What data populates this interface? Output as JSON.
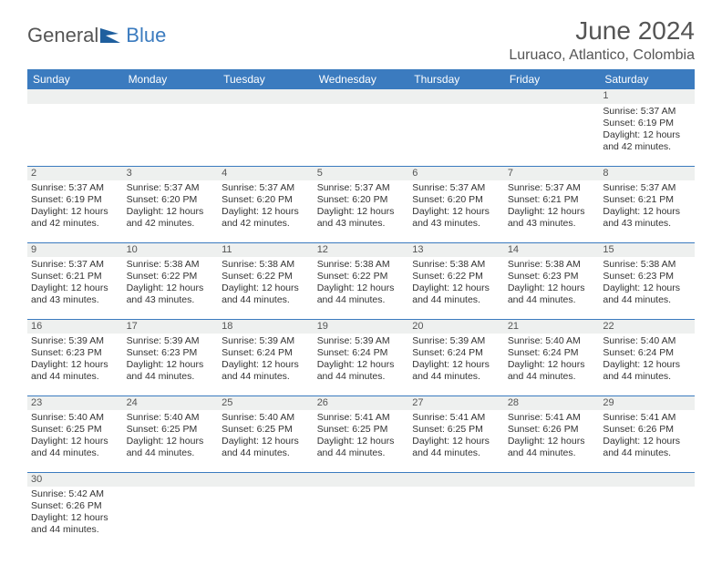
{
  "logo": {
    "part1": "General",
    "part2": "Blue"
  },
  "title": "June 2024",
  "location": "Luruaco, Atlantico, Colombia",
  "colors": {
    "header_bg": "#3b7bbf",
    "header_text": "#ffffff",
    "daynum_bg": "#eef0ef",
    "rule": "#3b7bbf",
    "body_text": "#333333",
    "title_text": "#555555"
  },
  "columns": [
    "Sunday",
    "Monday",
    "Tuesday",
    "Wednesday",
    "Thursday",
    "Friday",
    "Saturday"
  ],
  "weeks": [
    {
      "nums": [
        "",
        "",
        "",
        "",
        "",
        "",
        "1"
      ],
      "cells": [
        null,
        null,
        null,
        null,
        null,
        null,
        {
          "sunrise": "5:37 AM",
          "sunset": "6:19 PM",
          "daylight": "12 hours and 42 minutes."
        }
      ]
    },
    {
      "nums": [
        "2",
        "3",
        "4",
        "5",
        "6",
        "7",
        "8"
      ],
      "cells": [
        {
          "sunrise": "5:37 AM",
          "sunset": "6:19 PM",
          "daylight": "12 hours and 42 minutes."
        },
        {
          "sunrise": "5:37 AM",
          "sunset": "6:20 PM",
          "daylight": "12 hours and 42 minutes."
        },
        {
          "sunrise": "5:37 AM",
          "sunset": "6:20 PM",
          "daylight": "12 hours and 42 minutes."
        },
        {
          "sunrise": "5:37 AM",
          "sunset": "6:20 PM",
          "daylight": "12 hours and 43 minutes."
        },
        {
          "sunrise": "5:37 AM",
          "sunset": "6:20 PM",
          "daylight": "12 hours and 43 minutes."
        },
        {
          "sunrise": "5:37 AM",
          "sunset": "6:21 PM",
          "daylight": "12 hours and 43 minutes."
        },
        {
          "sunrise": "5:37 AM",
          "sunset": "6:21 PM",
          "daylight": "12 hours and 43 minutes."
        }
      ]
    },
    {
      "nums": [
        "9",
        "10",
        "11",
        "12",
        "13",
        "14",
        "15"
      ],
      "cells": [
        {
          "sunrise": "5:37 AM",
          "sunset": "6:21 PM",
          "daylight": "12 hours and 43 minutes."
        },
        {
          "sunrise": "5:38 AM",
          "sunset": "6:22 PM",
          "daylight": "12 hours and 43 minutes."
        },
        {
          "sunrise": "5:38 AM",
          "sunset": "6:22 PM",
          "daylight": "12 hours and 44 minutes."
        },
        {
          "sunrise": "5:38 AM",
          "sunset": "6:22 PM",
          "daylight": "12 hours and 44 minutes."
        },
        {
          "sunrise": "5:38 AM",
          "sunset": "6:22 PM",
          "daylight": "12 hours and 44 minutes."
        },
        {
          "sunrise": "5:38 AM",
          "sunset": "6:23 PM",
          "daylight": "12 hours and 44 minutes."
        },
        {
          "sunrise": "5:38 AM",
          "sunset": "6:23 PM",
          "daylight": "12 hours and 44 minutes."
        }
      ]
    },
    {
      "nums": [
        "16",
        "17",
        "18",
        "19",
        "20",
        "21",
        "22"
      ],
      "cells": [
        {
          "sunrise": "5:39 AM",
          "sunset": "6:23 PM",
          "daylight": "12 hours and 44 minutes."
        },
        {
          "sunrise": "5:39 AM",
          "sunset": "6:23 PM",
          "daylight": "12 hours and 44 minutes."
        },
        {
          "sunrise": "5:39 AM",
          "sunset": "6:24 PM",
          "daylight": "12 hours and 44 minutes."
        },
        {
          "sunrise": "5:39 AM",
          "sunset": "6:24 PM",
          "daylight": "12 hours and 44 minutes."
        },
        {
          "sunrise": "5:39 AM",
          "sunset": "6:24 PM",
          "daylight": "12 hours and 44 minutes."
        },
        {
          "sunrise": "5:40 AM",
          "sunset": "6:24 PM",
          "daylight": "12 hours and 44 minutes."
        },
        {
          "sunrise": "5:40 AM",
          "sunset": "6:24 PM",
          "daylight": "12 hours and 44 minutes."
        }
      ]
    },
    {
      "nums": [
        "23",
        "24",
        "25",
        "26",
        "27",
        "28",
        "29"
      ],
      "cells": [
        {
          "sunrise": "5:40 AM",
          "sunset": "6:25 PM",
          "daylight": "12 hours and 44 minutes."
        },
        {
          "sunrise": "5:40 AM",
          "sunset": "6:25 PM",
          "daylight": "12 hours and 44 minutes."
        },
        {
          "sunrise": "5:40 AM",
          "sunset": "6:25 PM",
          "daylight": "12 hours and 44 minutes."
        },
        {
          "sunrise": "5:41 AM",
          "sunset": "6:25 PM",
          "daylight": "12 hours and 44 minutes."
        },
        {
          "sunrise": "5:41 AM",
          "sunset": "6:25 PM",
          "daylight": "12 hours and 44 minutes."
        },
        {
          "sunrise": "5:41 AM",
          "sunset": "6:26 PM",
          "daylight": "12 hours and 44 minutes."
        },
        {
          "sunrise": "5:41 AM",
          "sunset": "6:26 PM",
          "daylight": "12 hours and 44 minutes."
        }
      ]
    },
    {
      "nums": [
        "30",
        "",
        "",
        "",
        "",
        "",
        ""
      ],
      "cells": [
        {
          "sunrise": "5:42 AM",
          "sunset": "6:26 PM",
          "daylight": "12 hours and 44 minutes."
        },
        null,
        null,
        null,
        null,
        null,
        null
      ]
    }
  ],
  "labels": {
    "sunrise": "Sunrise:",
    "sunset": "Sunset:",
    "daylight": "Daylight:"
  }
}
